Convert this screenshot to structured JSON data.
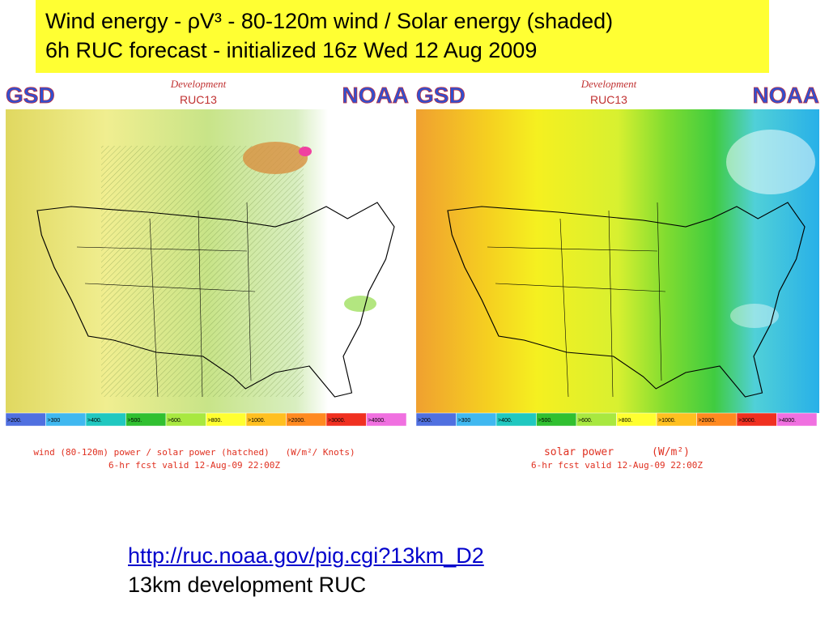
{
  "header": {
    "line1": "Wind energy - ρV³ - 80-120m wind / Solar energy (shaded)",
    "line2": "6h RUC forecast - initialized 16z Wed 12 Aug 2009"
  },
  "panels": [
    {
      "left_logo": "GSD",
      "banner": "Development",
      "model": "RUC13",
      "right_logo": "NOAA",
      "legend": [
        ">200.",
        ">300",
        ">400.",
        ">500.",
        ">600.",
        ">800.",
        ">1000.",
        ">2000.",
        ">3000.",
        ">4000."
      ],
      "caption": [
        "wind (80-120m) power / solar power (hatched)   (W/m²/ Knots)",
        "6-hr fcst valid 12-Aug-09 22:00Z"
      ]
    },
    {
      "left_logo": "GSD",
      "banner": "Development",
      "model": "RUC13",
      "right_logo": "NOAA",
      "legend": [
        ">200.",
        ">300",
        ">400.",
        ">500.",
        ">600.",
        ">800.",
        ">1000.",
        ">2000.",
        ">3000.",
        ">4000."
      ],
      "caption": [
        "solar power      (W/m²)",
        "6-hr fcst valid 12-Aug-09 22:00Z"
      ]
    }
  ],
  "footer": {
    "link": "http://ruc.noaa.gov/pig.cgi?13km_D2",
    "note": "13km development RUC"
  }
}
